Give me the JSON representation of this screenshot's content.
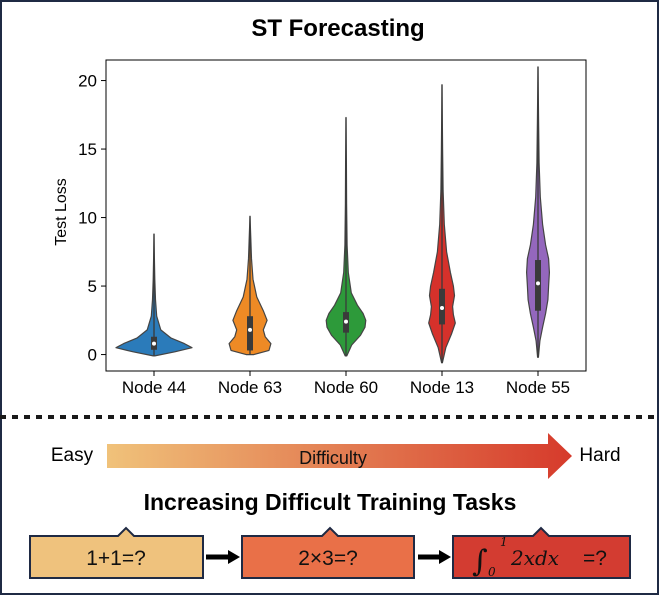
{
  "title": "ST Forecasting",
  "chart_data": {
    "type": "violin",
    "ylabel": "Test Loss",
    "xlabel": "",
    "ylim": [
      -1.2,
      21.5
    ],
    "yticks": [
      0,
      5,
      10,
      15,
      20
    ],
    "categories": [
      "Node 44",
      "Node 63",
      "Node 60",
      "Node 13",
      "Node 55"
    ],
    "series": [
      {
        "category": "Node 44",
        "color": "#2b7bba",
        "min": -0.1,
        "q1": 0.35,
        "median": 0.8,
        "q3": 1.3,
        "max": 8.8,
        "density": [
          [
            -0.1,
            0.02
          ],
          [
            0.2,
            0.55
          ],
          [
            0.5,
            1.0
          ],
          [
            0.8,
            0.8
          ],
          [
            1.2,
            0.45
          ],
          [
            1.8,
            0.18
          ],
          [
            2.8,
            0.07
          ],
          [
            4.0,
            0.04
          ],
          [
            5.5,
            0.02
          ],
          [
            7.0,
            0.01
          ],
          [
            8.8,
            0.0
          ]
        ]
      },
      {
        "category": "Node 63",
        "color": "#ee8a25",
        "min": 0.0,
        "q1": 0.3,
        "median": 1.8,
        "q3": 2.8,
        "max": 10.1,
        "density": [
          [
            0.0,
            0.1
          ],
          [
            0.3,
            0.5
          ],
          [
            0.8,
            0.55
          ],
          [
            1.3,
            0.4
          ],
          [
            1.8,
            0.35
          ],
          [
            2.5,
            0.45
          ],
          [
            3.2,
            0.35
          ],
          [
            4.2,
            0.18
          ],
          [
            5.5,
            0.08
          ],
          [
            7.0,
            0.04
          ],
          [
            8.5,
            0.02
          ],
          [
            10.1,
            0.0
          ]
        ]
      },
      {
        "category": "Node 60",
        "color": "#2d9a3a",
        "min": -0.1,
        "q1": 1.6,
        "median": 2.4,
        "q3": 3.1,
        "max": 17.3,
        "density": [
          [
            -0.1,
            0.02
          ],
          [
            0.7,
            0.15
          ],
          [
            1.4,
            0.38
          ],
          [
            2.0,
            0.5
          ],
          [
            2.5,
            0.52
          ],
          [
            3.0,
            0.45
          ],
          [
            3.6,
            0.3
          ],
          [
            4.5,
            0.14
          ],
          [
            6.0,
            0.06
          ],
          [
            8.0,
            0.03
          ],
          [
            11.0,
            0.015
          ],
          [
            14.0,
            0.01
          ],
          [
            17.3,
            0.0
          ]
        ]
      },
      {
        "category": "Node 13",
        "color": "#d6312b",
        "min": -0.6,
        "q1": 2.2,
        "median": 3.4,
        "q3": 4.8,
        "max": 19.7,
        "density": [
          [
            -0.6,
            0.01
          ],
          [
            0.5,
            0.1
          ],
          [
            1.5,
            0.25
          ],
          [
            2.3,
            0.35
          ],
          [
            2.9,
            0.3
          ],
          [
            3.5,
            0.28
          ],
          [
            4.3,
            0.33
          ],
          [
            5.0,
            0.3
          ],
          [
            6.0,
            0.22
          ],
          [
            7.5,
            0.12
          ],
          [
            9.5,
            0.06
          ],
          [
            12.0,
            0.03
          ],
          [
            15.0,
            0.015
          ],
          [
            19.7,
            0.0
          ]
        ]
      },
      {
        "category": "Node 55",
        "color": "#9467bd",
        "min": -0.2,
        "q1": 3.2,
        "median": 5.2,
        "q3": 6.9,
        "max": 21.0,
        "density": [
          [
            -0.2,
            0.01
          ],
          [
            1.0,
            0.05
          ],
          [
            2.0,
            0.12
          ],
          [
            3.0,
            0.2
          ],
          [
            4.0,
            0.26
          ],
          [
            5.0,
            0.28
          ],
          [
            6.0,
            0.3
          ],
          [
            7.0,
            0.28
          ],
          [
            8.0,
            0.2
          ],
          [
            9.5,
            0.12
          ],
          [
            11.5,
            0.06
          ],
          [
            14.0,
            0.03
          ],
          [
            17.0,
            0.015
          ],
          [
            21.0,
            0.0
          ]
        ]
      }
    ]
  },
  "difficulty": {
    "easy_label": "Easy",
    "center_label": "Difficulty",
    "hard_label": "Hard",
    "gradient_start": "#f0c27a",
    "gradient_end": "#d63a2b"
  },
  "tasks": {
    "heading": "Increasing Difficult Training Tasks",
    "items": [
      {
        "label": "1+1=?",
        "color": "#efc27d"
      },
      {
        "label": "2×3=?",
        "color": "#e97048"
      },
      {
        "label": "=?",
        "color": "#d33c31",
        "integral_lower": "0",
        "integral_upper": "1",
        "integrand": "2xdx"
      }
    ]
  },
  "colors": {
    "frame": "#1f2a44",
    "task_border": "#1f2a44"
  }
}
